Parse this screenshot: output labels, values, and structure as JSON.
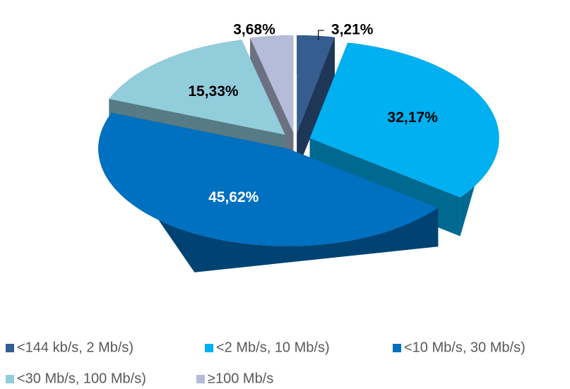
{
  "chart_data": {
    "type": "pie3d",
    "categories": [
      "<144 kb/s, 2 Mb/s)",
      "<2 Mb/s, 10 Mb/s)",
      "<10 Mb/s, 30 Mb/s)",
      "<30 Mb/s, 100 Mb/s)",
      "≥100 Mb/s"
    ],
    "values": [
      3.21,
      32.17,
      45.62,
      15.33,
      3.68
    ],
    "value_labels": [
      "3,21%",
      "32,17%",
      "45,62%",
      "15,33%",
      "3,68%"
    ],
    "colors": [
      "#355d90",
      "#00b0f0",
      "#0070c0",
      "#92cddc",
      "#b4bcd9"
    ],
    "legend": "bottom"
  }
}
